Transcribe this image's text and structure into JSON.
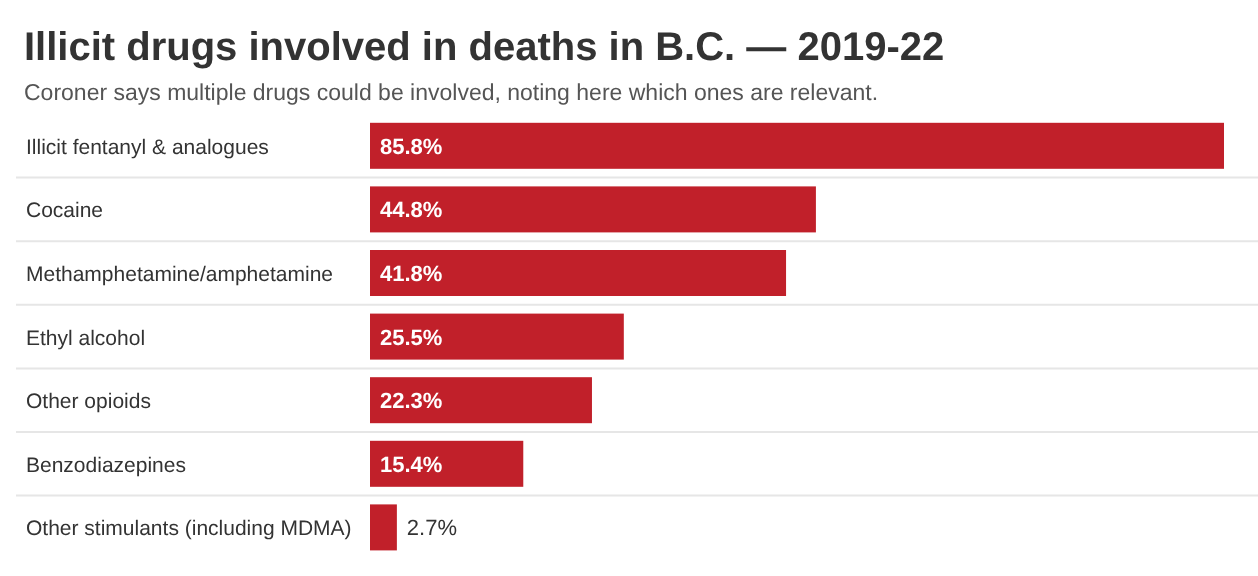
{
  "chart_data": {
    "type": "bar",
    "orientation": "horizontal",
    "title": "Illicit drugs involved in deaths in B.C. — 2019-22",
    "subtitle": "Coroner says multiple drugs could be involved, noting here which ones are relevant.",
    "categories": [
      "Illicit fentanyl & analogues",
      "Cocaine",
      "Methamphetamine/amphetamine",
      "Ethyl alcohol",
      "Other opioids",
      "Benzodiazepines",
      "Other stimulants (including MDMA)"
    ],
    "values": [
      85.8,
      44.8,
      41.8,
      25.5,
      22.3,
      15.4,
      2.7
    ],
    "value_labels": [
      "85.8%",
      "44.8%",
      "41.8%",
      "25.5%",
      "22.3%",
      "15.4%",
      "2.7%"
    ],
    "color": "#c1202a",
    "grid": "y"
  }
}
